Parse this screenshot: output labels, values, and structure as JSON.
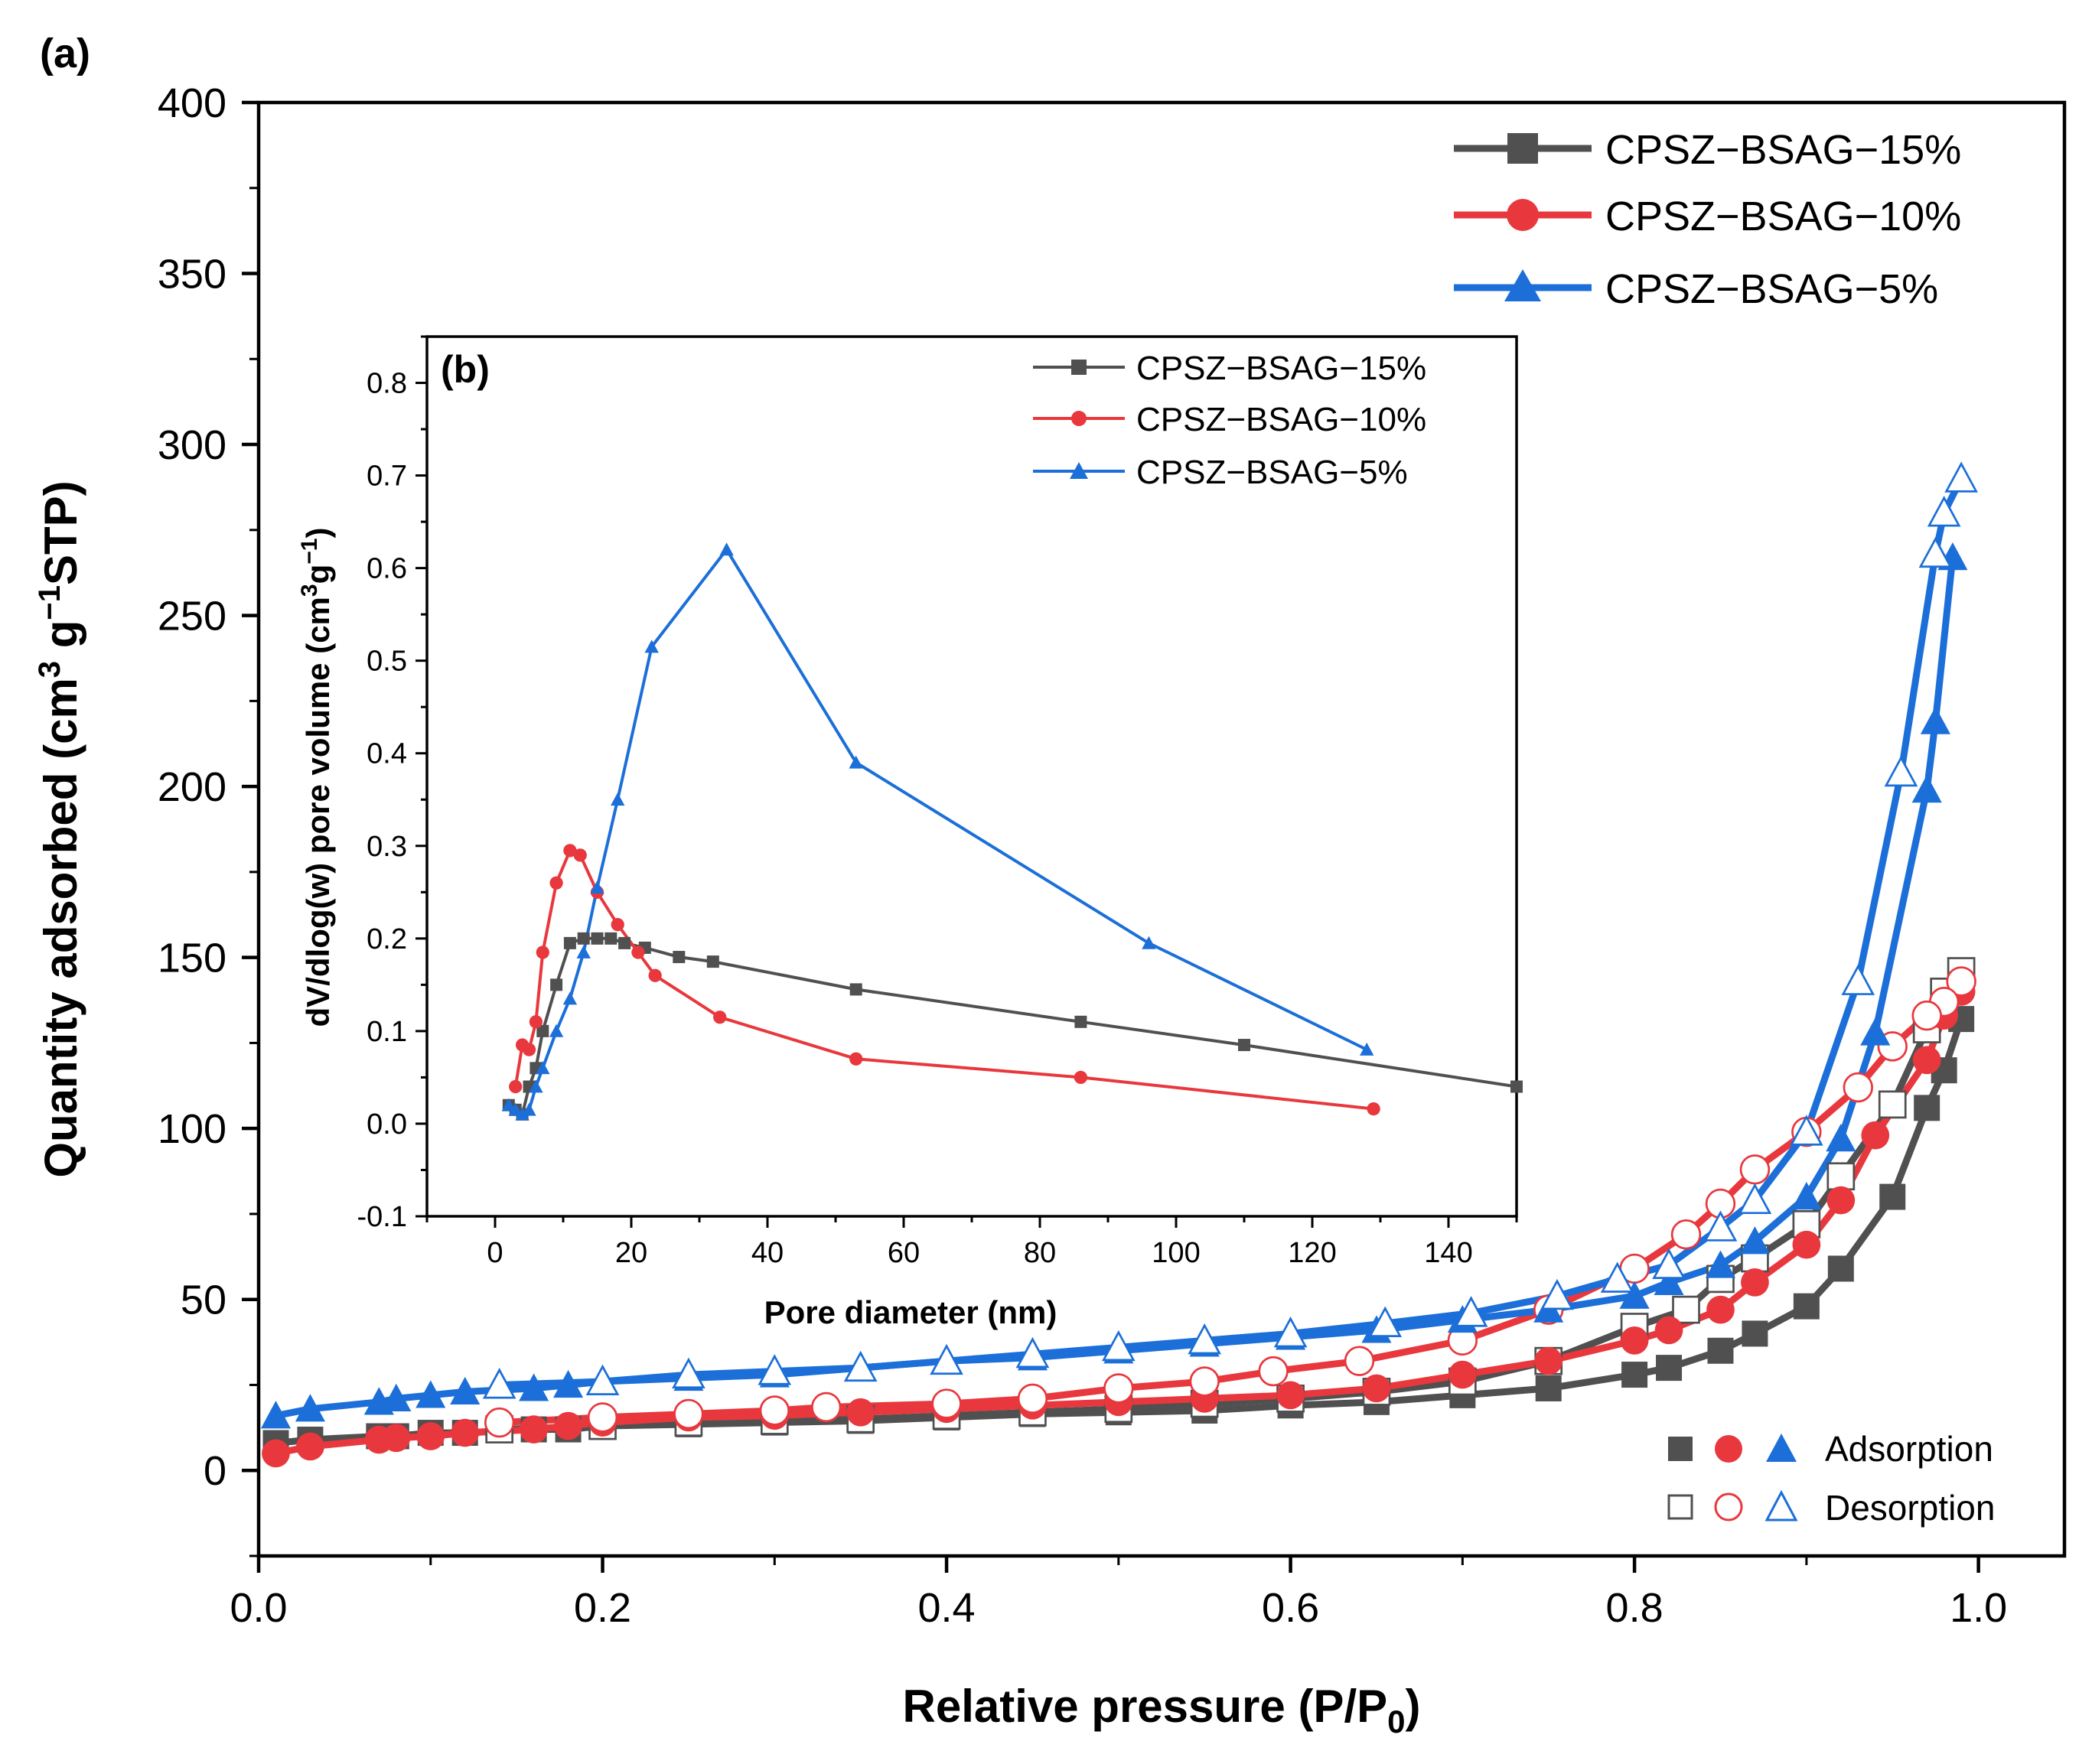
{
  "chart_data": [
    {
      "panel": "(a)",
      "type": "line",
      "title": "",
      "xlabel": "Relative pressure (P/P",
      "xlabel_sub": "0",
      "xlabel_tail": ")",
      "ylabel_parts": [
        "Quantity adsorbed (cm",
        "3",
        " g",
        "−1",
        "STP)"
      ],
      "xlim": [
        0,
        1.05
      ],
      "ylim": [
        -25,
        400
      ],
      "xticks": [
        0.0,
        0.2,
        0.4,
        0.6,
        0.8,
        1.0
      ],
      "xtick_labels": [
        "0.0",
        "0.2",
        "0.4",
        "0.6",
        "0.8",
        "1.0"
      ],
      "yticks": [
        0,
        50,
        100,
        150,
        200,
        250,
        300,
        350,
        400
      ],
      "ytick_labels": [
        "0",
        "50",
        "100",
        "150",
        "200",
        "250",
        "300",
        "350",
        "400"
      ],
      "legend_position": "top-right",
      "mode_legend": {
        "adsorption": "Adsorption",
        "desorption": "Desorption"
      },
      "series": [
        {
          "name": "CPSZ−BSAG−15%",
          "color": "#505050",
          "marker": "square",
          "adsorption": {
            "x": [
              0.01,
              0.03,
              0.07,
              0.08,
              0.1,
              0.12,
              0.16,
              0.18,
              0.2,
              0.25,
              0.3,
              0.35,
              0.4,
              0.45,
              0.5,
              0.55,
              0.6,
              0.65,
              0.7,
              0.75,
              0.8,
              0.82,
              0.85,
              0.87,
              0.9,
              0.92,
              0.95,
              0.97,
              0.98,
              0.99
            ],
            "y": [
              8,
              9,
              10,
              10,
              11,
              11,
              12,
              12,
              13,
              13.5,
              14,
              14.5,
              15.5,
              16.5,
              17,
              17.5,
              19,
              20,
              22,
              24,
              28,
              30,
              35,
              40,
              48,
              59,
              80,
              106,
              117,
              132
            ]
          },
          "desorption": {
            "x": [
              0.99,
              0.98,
              0.97,
              0.95,
              0.92,
              0.9,
              0.87,
              0.85,
              0.83,
              0.8,
              0.75,
              0.7,
              0.65,
              0.6,
              0.55,
              0.5,
              0.45,
              0.4,
              0.35,
              0.3,
              0.25,
              0.2,
              0.14
            ],
            "y": [
              146,
              140,
              129,
              107,
              86,
              72,
              62,
              56,
              47,
              42,
              32,
              26,
              23,
              21,
              19.5,
              18,
              17,
              16,
              15,
              14.5,
              14,
              13,
              12
            ]
          }
        },
        {
          "name": "CPSZ−BSAG−10%",
          "color": "#e8383d",
          "marker": "circle",
          "adsorption": {
            "x": [
              0.01,
              0.03,
              0.07,
              0.08,
              0.1,
              0.12,
              0.16,
              0.18,
              0.2,
              0.25,
              0.3,
              0.35,
              0.4,
              0.45,
              0.5,
              0.55,
              0.6,
              0.65,
              0.7,
              0.75,
              0.8,
              0.82,
              0.85,
              0.87,
              0.9,
              0.92,
              0.94,
              0.97,
              0.98,
              0.99
            ],
            "y": [
              5,
              7,
              9,
              9.5,
              10,
              11,
              12,
              13,
              14,
              15.5,
              16,
              17,
              18,
              19,
              20,
              21,
              22,
              24,
              28,
              32,
              38,
              41,
              47,
              55,
              66,
              79,
              98,
              120,
              133,
              140
            ]
          },
          "desorption": {
            "x": [
              0.99,
              0.98,
              0.97,
              0.95,
              0.93,
              0.9,
              0.87,
              0.85,
              0.83,
              0.8,
              0.75,
              0.7,
              0.64,
              0.59,
              0.55,
              0.5,
              0.45,
              0.4,
              0.33,
              0.3,
              0.25,
              0.2,
              0.14
            ],
            "y": [
              143,
              137,
              133,
              124,
              112,
              99,
              88,
              78,
              69,
              59,
              47,
              38,
              32,
              29,
              26,
              24,
              21,
              19.5,
              18.5,
              17.5,
              16.5,
              15.5,
              14
            ]
          }
        },
        {
          "name": "CPSZ−BSAG−5%",
          "color": "#1c6fd8",
          "marker": "triangle",
          "adsorption": {
            "x": [
              0.01,
              0.03,
              0.07,
              0.08,
              0.1,
              0.12,
              0.16,
              0.18,
              0.2,
              0.25,
              0.3,
              0.35,
              0.4,
              0.45,
              0.5,
              0.55,
              0.6,
              0.65,
              0.7,
              0.75,
              0.8,
              0.82,
              0.85,
              0.87,
              0.9,
              0.92,
              0.94,
              0.97,
              0.975,
              0.985
            ],
            "y": [
              16,
              18,
              20,
              21,
              22,
              23,
              24,
              25,
              26,
              27,
              28,
              30,
              32,
              33,
              35,
              37,
              39,
              41,
              44,
              47,
              51,
              55,
              60,
              67,
              80,
              97,
              128,
              199,
              219,
              267
            ]
          },
          "desorption": {
            "x": [
              0.99,
              0.98,
              0.975,
              0.955,
              0.93,
              0.9,
              0.87,
              0.85,
              0.82,
              0.79,
              0.755,
              0.705,
              0.655,
              0.6,
              0.55,
              0.5,
              0.45,
              0.4,
              0.35,
              0.3,
              0.25,
              0.2,
              0.14
            ],
            "y": [
              290,
              280,
              268,
              204,
              143,
              99,
              79,
              71,
              60,
              56,
              51,
              46,
              43,
              40,
              38,
              36,
              34,
              32,
              30,
              29,
              28,
              26,
              25
            ]
          }
        }
      ]
    },
    {
      "panel": "(b)",
      "type": "line",
      "title": "",
      "xlabel": "Pore diameter (nm)",
      "ylabel_parts": [
        "dV/dlog(w) pore volume (cm",
        "3",
        "g",
        "−1",
        ")"
      ],
      "xlim": [
        -10,
        150
      ],
      "ylim": [
        -0.1,
        0.85
      ],
      "xticks": [
        0,
        20,
        40,
        60,
        80,
        100,
        120,
        140
      ],
      "xtick_labels": [
        "0",
        "20",
        "40",
        "60",
        "80",
        "100",
        "120",
        "140"
      ],
      "yticks": [
        -0.1,
        0.0,
        0.1,
        0.2,
        0.3,
        0.4,
        0.5,
        0.6,
        0.7,
        0.8
      ],
      "ytick_labels": [
        "-0.1",
        "0.0",
        "0.1",
        "0.2",
        "0.3",
        "0.4",
        "0.5",
        "0.6",
        "0.7",
        "0.8"
      ],
      "legend_position": "top-right",
      "series": [
        {
          "name": "CPSZ−BSAG−15%",
          "color": "#505050",
          "marker": "square",
          "x": [
            2,
            3,
            4,
            5,
            6,
            7,
            9,
            11,
            13,
            15,
            17,
            19,
            22,
            27,
            32,
            53,
            86,
            110,
            150
          ],
          "y": [
            0.02,
            0.015,
            0.01,
            0.04,
            0.06,
            0.1,
            0.15,
            0.195,
            0.2,
            0.2,
            0.2,
            0.195,
            0.19,
            0.18,
            0.175,
            0.145,
            0.11,
            0.085,
            0.04
          ]
        },
        {
          "name": "CPSZ−BSAG−10%",
          "color": "#e8383d",
          "marker": "circle",
          "x": [
            3,
            4,
            5,
            6,
            7,
            9,
            11,
            12.5,
            15,
            18,
            21,
            23.5,
            33,
            53,
            86,
            129
          ],
          "y": [
            0.04,
            0.085,
            0.08,
            0.11,
            0.185,
            0.26,
            0.295,
            0.29,
            0.25,
            0.215,
            0.185,
            0.16,
            0.115,
            0.07,
            0.05,
            0.016
          ]
        },
        {
          "name": "CPSZ−BSAG−5%",
          "color": "#1c6fd8",
          "marker": "triangle",
          "x": [
            2,
            3,
            4,
            5,
            6,
            7,
            9,
            11,
            13,
            15,
            18,
            23,
            34,
            53,
            96,
            128
          ],
          "y": [
            0.02,
            0.015,
            0.01,
            0.015,
            0.04,
            0.06,
            0.1,
            0.135,
            0.185,
            0.255,
            0.35,
            0.515,
            0.62,
            0.39,
            0.195,
            0.08
          ]
        }
      ]
    }
  ]
}
